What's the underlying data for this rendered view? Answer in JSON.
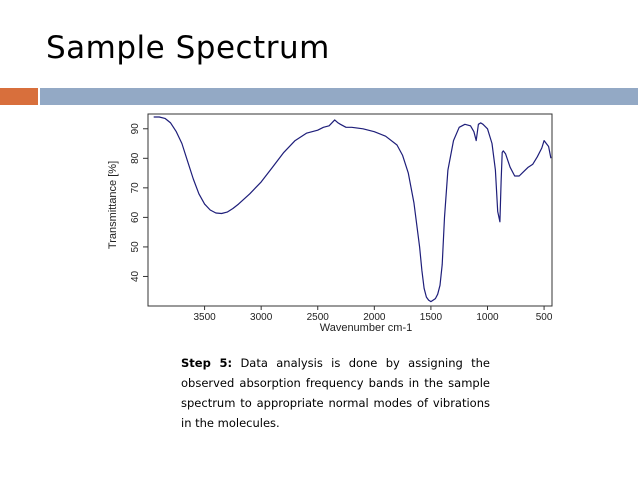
{
  "slide": {
    "title": "Sample Spectrum",
    "colors": {
      "accent": "#d86f3c",
      "bar": "#93a9c5",
      "line": "#1e1e7a"
    }
  },
  "caption": {
    "step_label": "Step 5:",
    "text": " Data analysis is done by assigning the observed absorption frequency bands in the sample spectrum to appropriate normal modes of vibrations in the molecules."
  },
  "chart_data": {
    "type": "line",
    "title": "",
    "xlabel": "Wavenumber cm-1",
    "ylabel": "Transmittance [%]",
    "xlim": [
      4000,
      430
    ],
    "ylim": [
      30,
      95
    ],
    "x_reversed": true,
    "grid": false,
    "xticks": [
      3500,
      3000,
      2500,
      2000,
      1500,
      1000,
      500
    ],
    "yticks": [
      40,
      50,
      60,
      70,
      80,
      90
    ],
    "series": [
      {
        "x": [
          3950,
          3900,
          3850,
          3800,
          3750,
          3700,
          3650,
          3600,
          3550,
          3500,
          3450,
          3400,
          3350,
          3300,
          3250,
          3200,
          3100,
          3000,
          2900,
          2800,
          2700,
          2600,
          2500,
          2450,
          2400,
          2350,
          2320,
          2300,
          2250,
          2200,
          2100,
          2000,
          1900,
          1800,
          1750,
          1700,
          1650,
          1600,
          1580,
          1560,
          1540,
          1520,
          1500,
          1480,
          1460,
          1440,
          1420,
          1400,
          1380,
          1350,
          1300,
          1250,
          1200,
          1150,
          1120,
          1100,
          1080,
          1060,
          1040,
          1000,
          960,
          930,
          910,
          890,
          880,
          870,
          860,
          840,
          800,
          760,
          720,
          680,
          640,
          600,
          560,
          520,
          500,
          480,
          460,
          440
        ],
        "y": [
          94,
          94,
          93.5,
          92,
          89,
          85,
          79,
          73,
          68,
          64.5,
          62.5,
          61.5,
          61.3,
          61.8,
          63,
          64.5,
          68,
          72,
          77,
          82,
          86,
          88.5,
          89.5,
          90.5,
          91,
          93,
          92,
          91.5,
          90.5,
          90.5,
          90,
          89,
          87.5,
          84.5,
          81,
          75,
          65,
          50,
          42,
          36,
          33,
          32,
          31.5,
          32,
          32.5,
          34,
          37,
          44,
          60,
          76,
          86,
          90.5,
          91.5,
          91,
          89,
          86,
          91.5,
          92,
          91.5,
          90,
          85,
          76,
          62,
          58.5,
          72,
          82,
          82.5,
          81.5,
          77,
          74,
          74,
          75.5,
          77,
          78,
          80.5,
          83.5,
          86,
          85,
          84,
          80
        ]
      }
    ]
  }
}
